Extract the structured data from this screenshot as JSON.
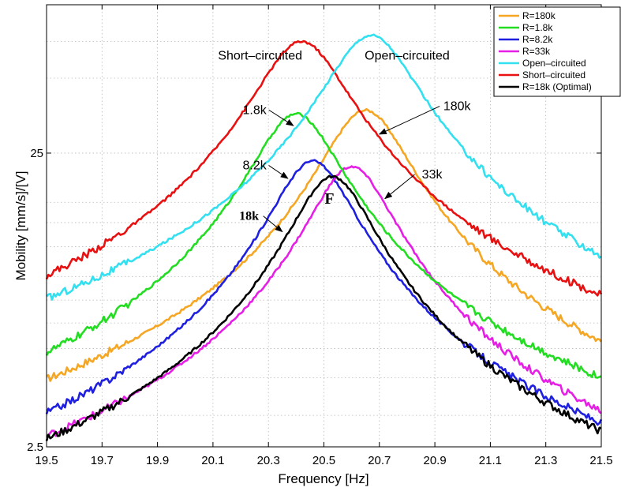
{
  "chart_data": {
    "type": "line",
    "xlabel": "Frequency [Hz]",
    "ylabel": "Mobility [mm/s]/[V]",
    "xlim": [
      19.5,
      21.5
    ],
    "ylim": [
      2.5,
      80
    ],
    "yscale": "log",
    "grid": true,
    "legend_position": "top-right",
    "x_ticks": [
      "19.5",
      "19.7",
      "19.9",
      "20.1",
      "20.3",
      "20.5",
      "20.7",
      "20.9",
      "21.1",
      "21.3",
      "21.5"
    ],
    "y_ticks": [
      "2.5",
      "25"
    ],
    "series": [
      {
        "name": "R=180k",
        "color": "#f5a623",
        "peak_x": 20.65,
        "peak_y": 35,
        "base_y": 6.4
      },
      {
        "name": "R=1.8k",
        "color": "#22dd22",
        "peak_x": 20.4,
        "peak_y": 34,
        "base_y": 6.4
      },
      {
        "name": "R=8.2k",
        "color": "#1f1fe0",
        "peak_x": 20.46,
        "peak_y": 23.5,
        "base_y": 6.4
      },
      {
        "name": "R=33k",
        "color": "#e61ee6",
        "peak_x": 20.6,
        "peak_y": 22.5,
        "base_y": 6.4
      },
      {
        "name": "Open–circuited",
        "color": "#33e0f0",
        "peak_x": 20.67,
        "peak_y": 63,
        "base_y": 6.4
      },
      {
        "name": "Short–circuited",
        "color": "#e81010",
        "peak_x": 20.42,
        "peak_y": 60,
        "base_y": 6.4
      },
      {
        "name": "R=18k (Optimal)",
        "color": "#000000",
        "peak_x": 20.53,
        "peak_y": 20.8,
        "base_y": 6.4
      }
    ],
    "annotations": [
      {
        "text": "Short–circuited",
        "x": 20.27,
        "y": 52
      },
      {
        "text": "Open–circuited",
        "x": 20.8,
        "y": 52
      },
      {
        "text": "1.8k",
        "x": 20.25,
        "y": 34,
        "arrow_to": [
          20.39,
          31
        ]
      },
      {
        "text": "180k",
        "x": 20.98,
        "y": 35,
        "arrow_to": [
          20.7,
          29
        ]
      },
      {
        "text": "8.2k",
        "x": 20.25,
        "y": 22,
        "arrow_to": [
          20.37,
          20.5
        ]
      },
      {
        "text": "33k",
        "x": 20.89,
        "y": 20.5,
        "arrow_to": [
          20.72,
          17.5
        ]
      },
      {
        "text": "18k",
        "x": 20.23,
        "y": 14.8,
        "arrow_to": [
          20.35,
          13.5
        ],
        "bold": true
      },
      {
        "text": "F",
        "x": 20.52,
        "y": 16.8,
        "bold": true
      }
    ]
  }
}
